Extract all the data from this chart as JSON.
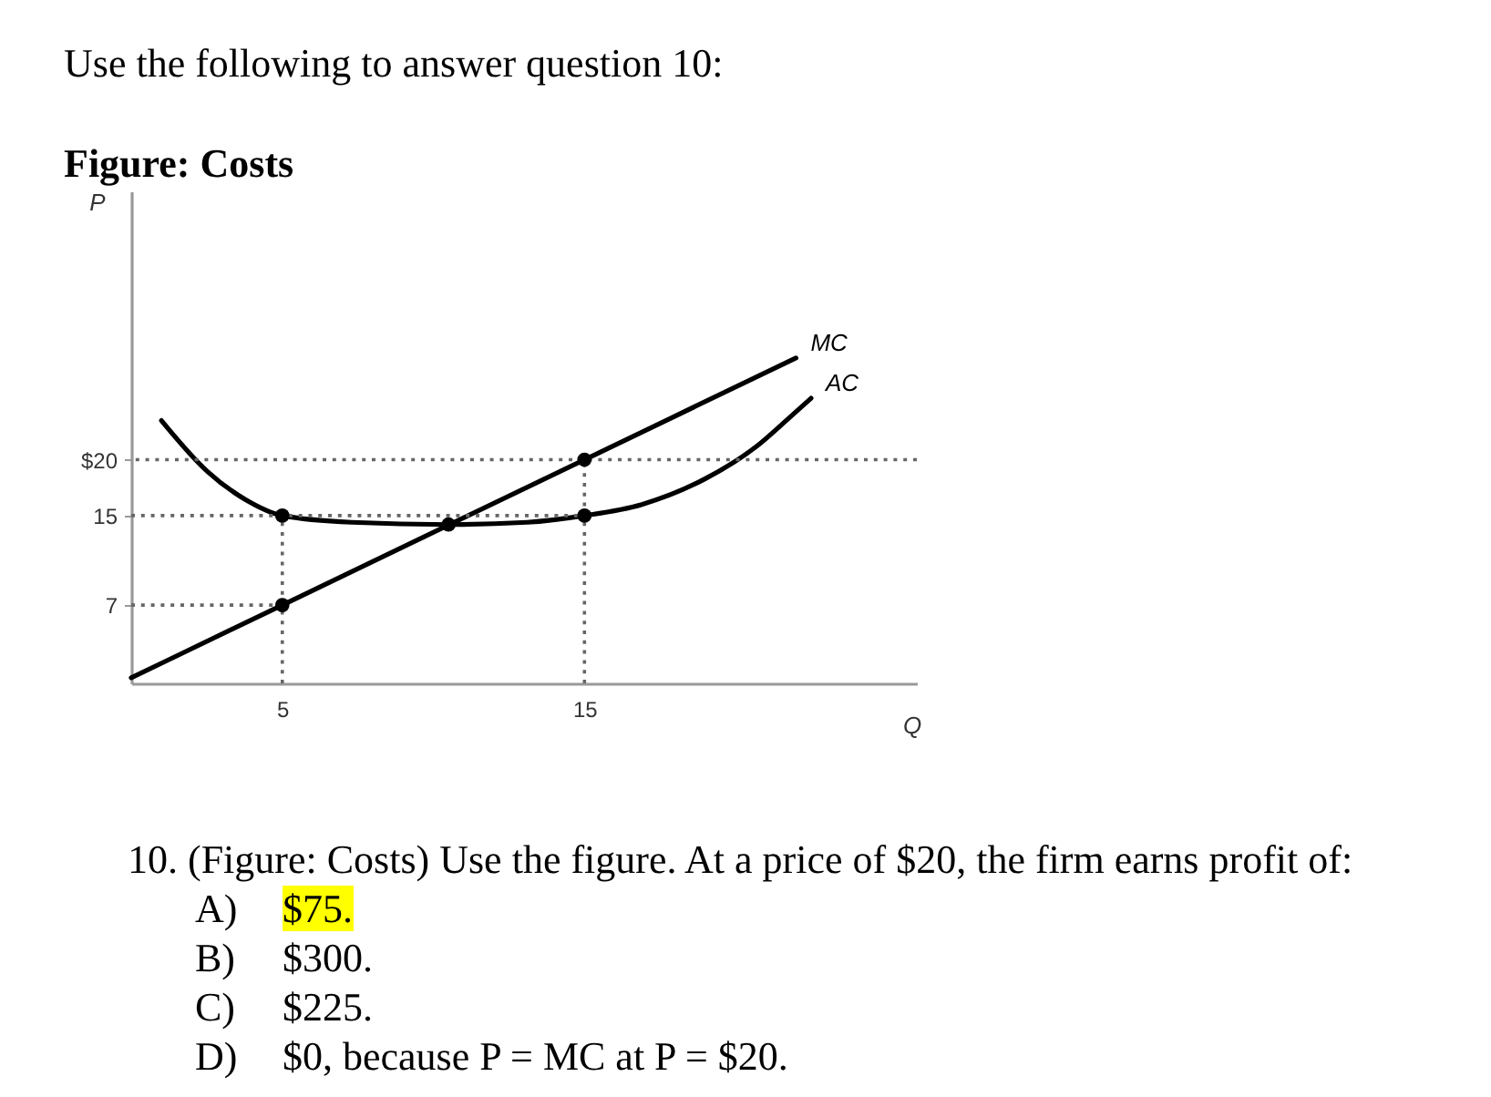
{
  "chart_data": {
    "type": "line",
    "title": "Figure: Costs",
    "xlabel": "Q",
    "ylabel": "P",
    "annotations": [
      "Use the following to answer question 10:",
      "10. (Figure: Costs) Use the figure. At a price of $20, the firm earns profit of:",
      "A) $75.",
      "B) $300.",
      "C) $225.",
      "D) $0, because P = MC at P = $20."
    ],
    "xlim": [
      0,
      26
    ],
    "ylim": [
      0,
      44
    ],
    "xticks": [
      5,
      15
    ],
    "yticks": [
      7,
      15,
      {
        "value": 20,
        "label": "$20"
      }
    ],
    "series": [
      {
        "name": "MC",
        "color": "#000000",
        "x": [
          0,
          5,
          15,
          22
        ],
        "values": [
          0.5,
          7,
          20,
          29.1
        ]
      },
      {
        "name": "AC",
        "color": "#000000",
        "x": [
          1,
          2.5,
          3.8,
          5,
          7.3,
          10.5,
          13.1,
          15,
          16.9,
          19,
          20.7,
          21.8,
          22.5
        ],
        "values": [
          23.5,
          19,
          16.4,
          15,
          14.4,
          14.2,
          14.4,
          15,
          16,
          18.3,
          21.2,
          23.8,
          25.5
        ]
      },
      {
        "color": "#666666",
        "line_style": "dotted",
        "x": [
          0,
          15
        ],
        "values": [
          15,
          15
        ]
      },
      {
        "color": "#666666",
        "line_style": "dotted",
        "x": [
          0,
          5
        ],
        "values": [
          7,
          7
        ]
      },
      {
        "color": "#666666",
        "line_style": "dotted",
        "x": [
          5,
          5
        ],
        "values": [
          0,
          15
        ]
      },
      {
        "color": "#666666",
        "line_style": "dotted",
        "x": [
          15,
          15
        ],
        "values": [
          0,
          20
        ]
      },
      {
        "type": "scatter",
        "color": "#000000",
        "marker": "circle",
        "x": [
          5,
          5,
          10.5,
          15,
          15
        ],
        "values": [
          15,
          7,
          14.2,
          20,
          15
        ]
      }
    ],
    "ref_lines": [
      {
        "axis": "y",
        "value": 20,
        "color": "#666666",
        "line_style": "dotted"
      }
    ]
  }
}
